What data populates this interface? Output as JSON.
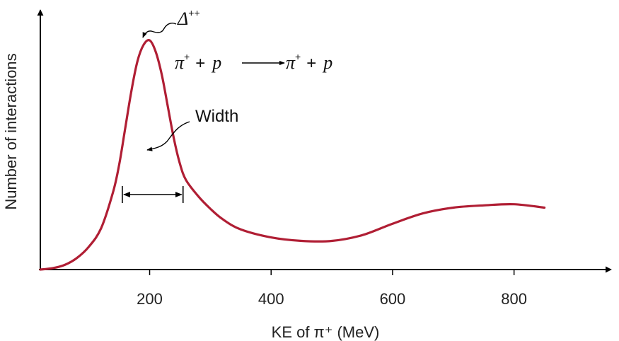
{
  "chart_data": {
    "type": "line",
    "title": "",
    "xlabel": "KE of π⁺ (MeV)",
    "ylabel": "Number of interactions",
    "xlim": [
      20,
      960
    ],
    "ylim": [
      0,
      100
    ],
    "xticks": [
      200,
      400,
      600,
      800
    ],
    "xtick_labels": [
      "200",
      "400",
      "600",
      "800"
    ],
    "y_ticks_shown": false,
    "grid": false,
    "series": [
      {
        "color": "#b01e34",
        "x": [
          20,
          40,
          60,
          80,
          100,
          120,
          140,
          150,
          160,
          170,
          180,
          190,
          200,
          210,
          220,
          230,
          240,
          250,
          260,
          280,
          300,
          320,
          350,
          400,
          450,
          500,
          550,
          600,
          650,
          700,
          750,
          800,
          850
        ],
        "y": [
          0,
          0.6,
          2,
          5,
          10,
          18,
          34,
          46,
          62,
          78,
          91,
          98,
          100,
          95,
          85,
          71,
          57,
          46,
          39,
          32,
          26.5,
          22,
          17.5,
          14,
          12.5,
          12.5,
          15,
          20,
          24.5,
          27,
          28,
          28.5,
          27
        ]
      }
    ],
    "annotations": {
      "peak_label": "Δ",
      "peak_label_sup": "++",
      "reaction": {
        "lhs_pi": "π",
        "lhs_pi_sup": "+",
        "plus1": "+",
        "lhs_p": "p",
        "rhs_pi": "π",
        "rhs_pi_sup": "+",
        "plus2": "+",
        "rhs_p": "p"
      },
      "width_label": "Width",
      "width_range": [
        155,
        255
      ],
      "width_level": 50
    }
  }
}
